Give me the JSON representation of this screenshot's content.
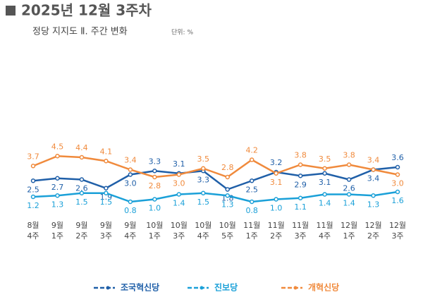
{
  "title": "2025년 12월 3주차",
  "subtitle": "정당 지지도 Ⅱ. 주간 변화",
  "unit": "단위: %",
  "chart_data": {
    "type": "line",
    "categories": [
      "8월\n4주",
      "9월\n1주",
      "9월\n2주",
      "9월\n3주",
      "9월\n4주",
      "10월\n1주",
      "10월\n3주",
      "10월\n4주",
      "10월\n5주",
      "11월\n1주",
      "11월\n2주",
      "11월\n3주",
      "11월\n4주",
      "12월\n1주",
      "12월\n2주",
      "12월\n3주"
    ],
    "series": [
      {
        "name": "조국혁신당",
        "color": "#1f5fa8",
        "values": [
          2.5,
          2.7,
          2.6,
          1.9,
          3.0,
          3.3,
          3.1,
          3.3,
          1.8,
          2.5,
          3.2,
          2.9,
          3.1,
          2.6,
          3.4,
          3.6
        ],
        "value_labels": [
          "2.5",
          "2.7",
          "2.6",
          "1.9",
          "3.0",
          "3.3",
          "3.1",
          "3.3",
          "1.8",
          "2.5",
          "3.2",
          "2.9",
          "3.1",
          "2.6",
          "3.4",
          "3.6"
        ]
      },
      {
        "name": "진보당",
        "color": "#1aa0d8",
        "values": [
          1.2,
          1.3,
          1.5,
          1.5,
          0.8,
          1.0,
          1.4,
          1.5,
          1.3,
          0.8,
          1.0,
          1.1,
          1.4,
          1.4,
          1.3,
          1.6
        ],
        "value_labels": [
          "1.2",
          "1.3",
          "1.5",
          "1.5",
          "0.8",
          "1.0",
          "1.4",
          "1.5",
          "1.3",
          "0.8",
          "1.0",
          "1.1",
          "1.4",
          "1.4",
          "1.3",
          "1.6"
        ]
      },
      {
        "name": "개혁신당",
        "color": "#f08a3c",
        "values": [
          3.7,
          4.5,
          4.4,
          4.1,
          3.4,
          2.8,
          3.0,
          3.5,
          2.8,
          4.2,
          3.1,
          3.8,
          3.5,
          3.8,
          3.4,
          3.0
        ],
        "value_labels": [
          "3.7",
          "4.5",
          "4.4",
          "4.1",
          "3.4",
          "2.8",
          "3.0",
          "3.5",
          "2.8",
          "4.2",
          "3.1",
          "3.8",
          "3.5",
          "3.8",
          "3.4",
          "3.0"
        ]
      }
    ]
  }
}
